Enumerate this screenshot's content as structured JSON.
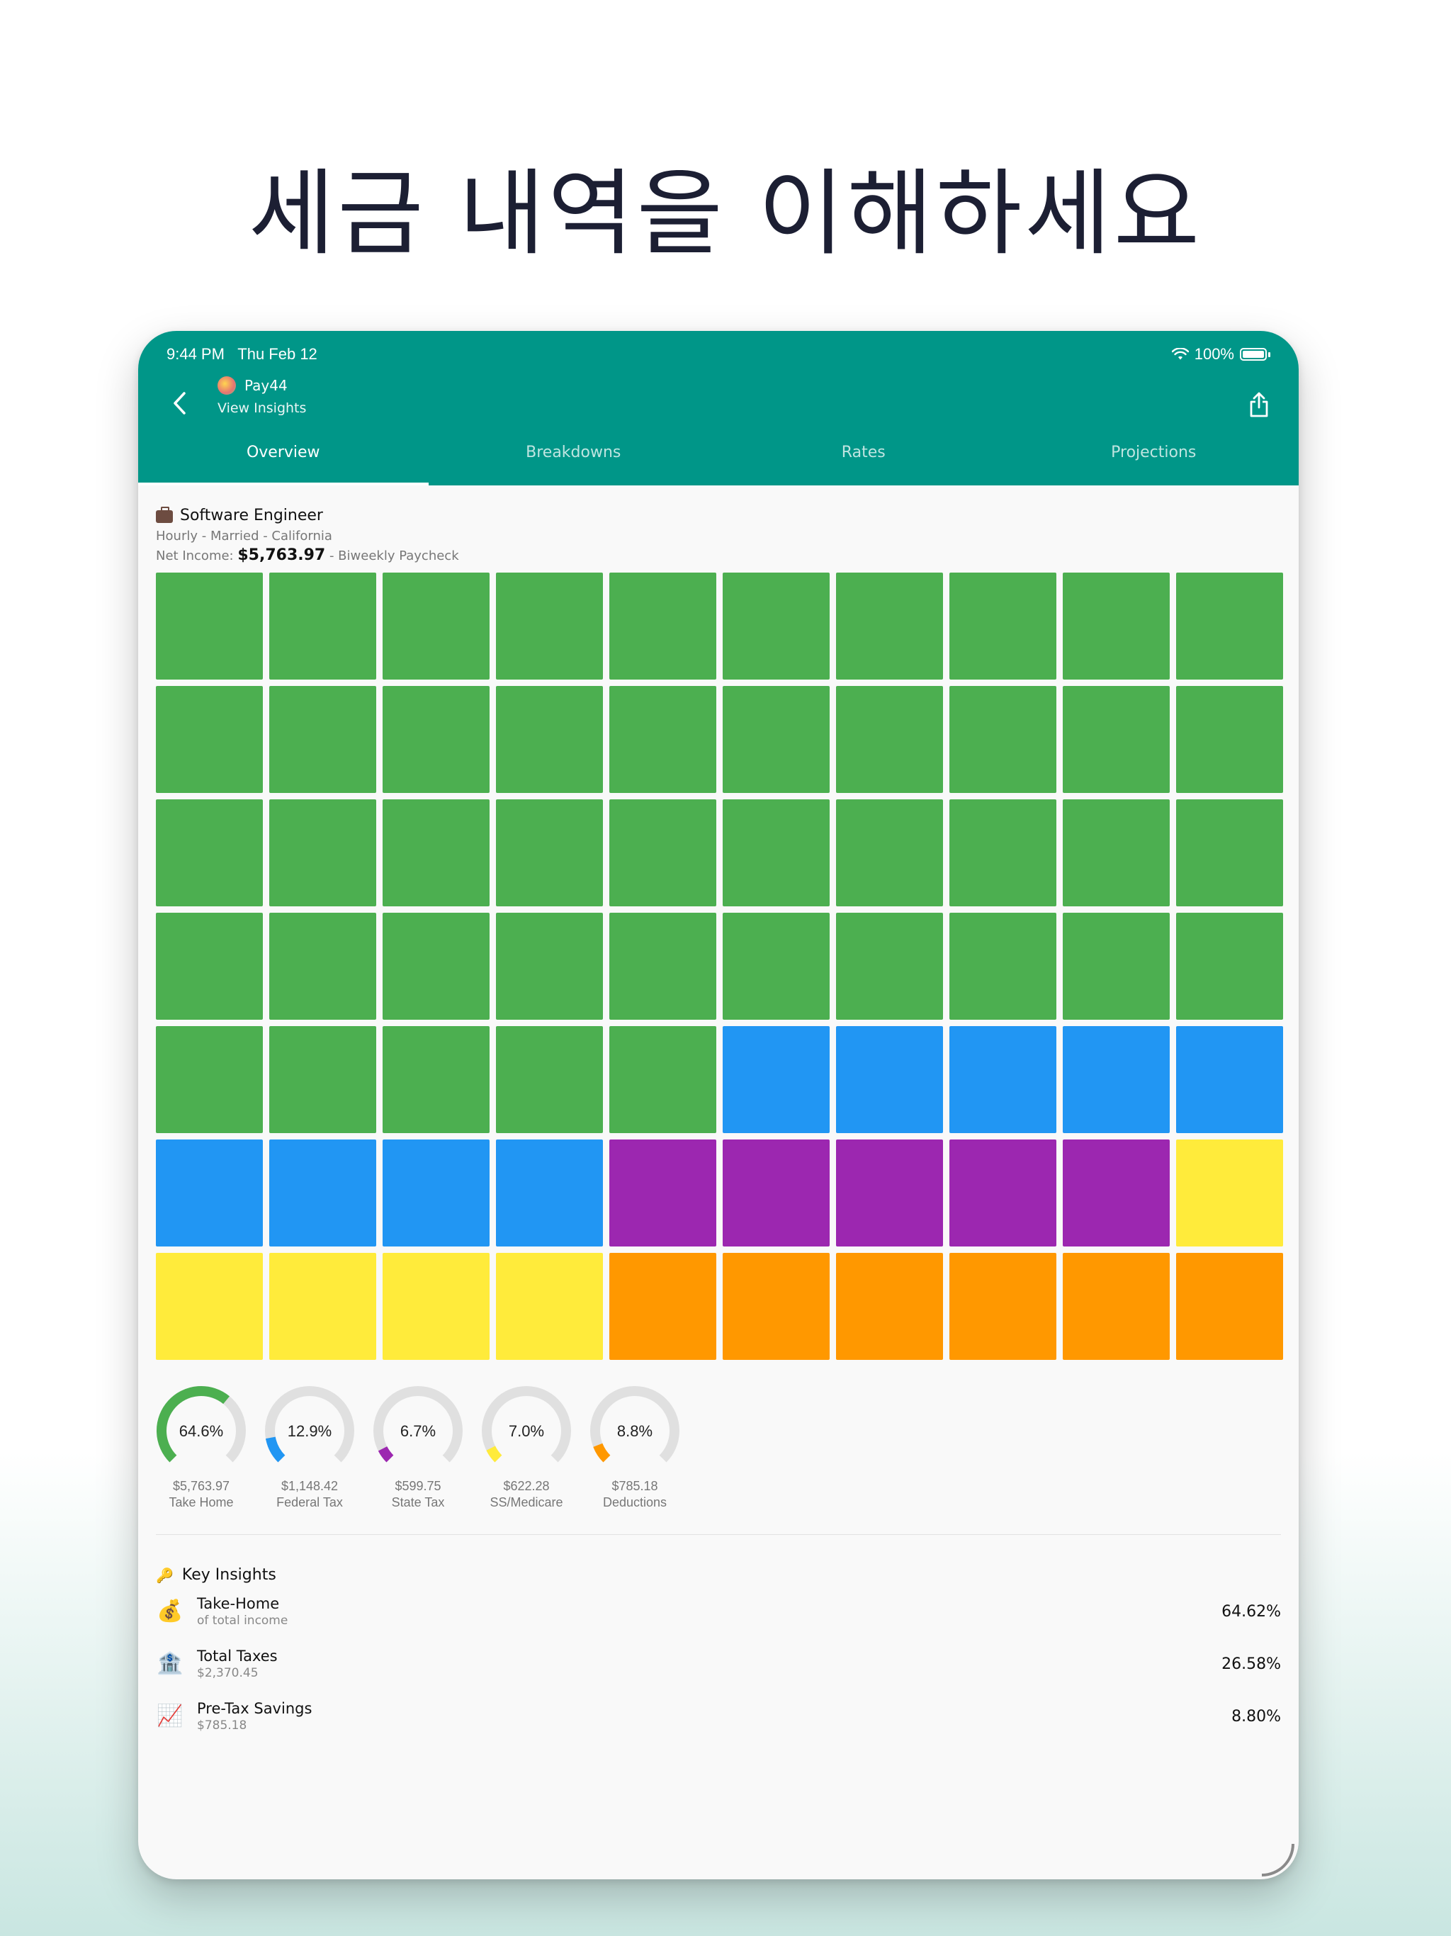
{
  "headline": "세금 내역을 이해하세요",
  "status": {
    "time": "9:44 PM",
    "date": "Thu Feb 12",
    "battery": "100%"
  },
  "appbar": {
    "app_name": "Pay44",
    "subtitle": "View Insights"
  },
  "tabs": [
    {
      "label": "Overview",
      "active": true
    },
    {
      "label": "Breakdowns",
      "active": false
    },
    {
      "label": "Rates",
      "active": false
    },
    {
      "label": "Projections",
      "active": false
    }
  ],
  "profile": {
    "job": "Software Engineer",
    "meta": "Hourly - Married - California",
    "net_prefix": "Net Income:",
    "net_value": "$5,763.97",
    "net_suffix": "- Biweekly Paycheck"
  },
  "colors": {
    "take_home": "#4CAF50",
    "federal": "#2196F3",
    "state": "#9C27B0",
    "ss_medicare": "#FFEB3B",
    "deductions": "#FF9800",
    "track": "#E0E0E0"
  },
  "waffle": {
    "columns": 10,
    "segments": [
      {
        "key": "take_home",
        "count": 45
      },
      {
        "key": "federal",
        "count": 9
      },
      {
        "key": "state",
        "count": 5
      },
      {
        "key": "ss_medicare",
        "count": 5
      },
      {
        "key": "deductions",
        "count": 6
      }
    ]
  },
  "gauges": [
    {
      "key": "take_home",
      "percent": "64.6%",
      "fraction": 0.646,
      "amount": "$5,763.97",
      "label": "Take Home"
    },
    {
      "key": "federal",
      "percent": "12.9%",
      "fraction": 0.129,
      "amount": "$1,148.42",
      "label": "Federal Tax"
    },
    {
      "key": "state",
      "percent": "6.7%",
      "fraction": 0.067,
      "amount": "$599.75",
      "label": "State Tax"
    },
    {
      "key": "ss_medicare",
      "percent": "7.0%",
      "fraction": 0.07,
      "amount": "$622.28",
      "label": "SS/Medicare"
    },
    {
      "key": "deductions",
      "percent": "8.8%",
      "fraction": 0.088,
      "amount": "$785.18",
      "label": "Deductions"
    }
  ],
  "insights": {
    "title": "Key Insights",
    "items": [
      {
        "icon": "money-bag-icon",
        "glyph": "💰",
        "name": "Take-Home",
        "sub": "of total income",
        "value": "64.62%"
      },
      {
        "icon": "bank-icon",
        "glyph": "🏦",
        "name": "Total Taxes",
        "sub": "$2,370.45",
        "value": "26.58%"
      },
      {
        "icon": "chart-increasing-icon",
        "glyph": "📈",
        "name": "Pre-Tax Savings",
        "sub": "$785.18",
        "value": "8.80%"
      }
    ]
  }
}
